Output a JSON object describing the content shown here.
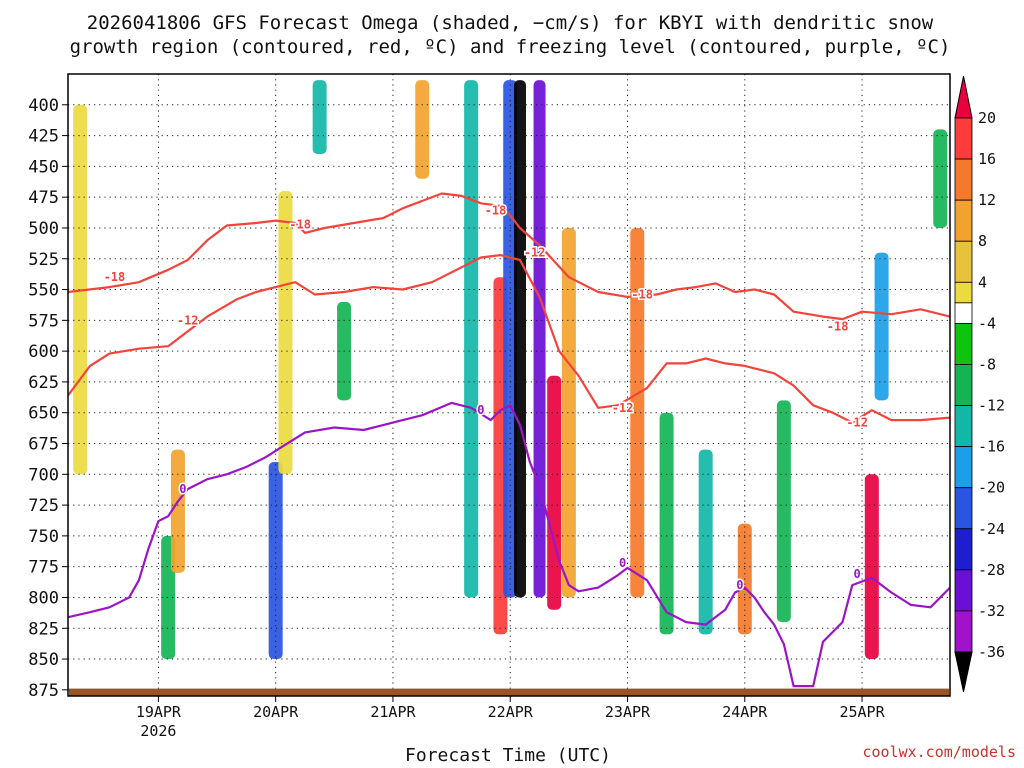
{
  "chart_data": {
    "type": "heatmap",
    "title_line1": "2026041806 GFS Forecast Omega (shaded, −cm/s) for KBYI with dendritic snow",
    "title_line2": "growth region (contoured, red, ºC) and freezing level (contoured, purple, ºC)",
    "xlabel": "Forecast Time (UTC)",
    "ylabel": "",
    "credit": "coolwx.com/models",
    "x_range_hours": [
      -18.5,
      162
    ],
    "x_ticks": [
      {
        "hour": 0,
        "label": "19APR",
        "sublabel": "2026"
      },
      {
        "hour": 24,
        "label": "20APR",
        "sublabel": ""
      },
      {
        "hour": 48,
        "label": "21APR",
        "sublabel": ""
      },
      {
        "hour": 72,
        "label": "22APR",
        "sublabel": ""
      },
      {
        "hour": 96,
        "label": "23APR",
        "sublabel": ""
      },
      {
        "hour": 120,
        "label": "24APR",
        "sublabel": ""
      },
      {
        "hour": 144,
        "label": "25APR",
        "sublabel": ""
      }
    ],
    "y_range_hpa": [
      375,
      880
    ],
    "y_ticks": [
      "400",
      "425",
      "450",
      "475",
      "500",
      "525",
      "550",
      "575",
      "600",
      "625",
      "650",
      "675",
      "700",
      "725",
      "750",
      "775",
      "800",
      "825",
      "850",
      "875"
    ],
    "colorbar": {
      "labels": [
        "20",
        "16",
        "12",
        "8",
        "4",
        "-4",
        "-8",
        "-12",
        "-16",
        "-20",
        "-24",
        "-28",
        "-32",
        "-36"
      ],
      "colors": [
        "#e8003f",
        "#ff3b3b",
        "#f5792a",
        "#f2a32f",
        "#e6c33a",
        "#eadb3f",
        "#ffffff",
        "#0fc40f",
        "#14b455",
        "#12b7a8",
        "#1b9fe8",
        "#2a55e0",
        "#1e1ecf",
        "#6a0fd6",
        "#a012cc",
        "#a6a6a6",
        "#000000"
      ]
    },
    "omega_columns": [
      {
        "hour": -16,
        "p_top": 400,
        "p_bot": 700,
        "value": 4
      },
      {
        "hour": 2,
        "p_top": 750,
        "p_bot": 850,
        "value": -8
      },
      {
        "hour": 4,
        "p_top": 680,
        "p_bot": 780,
        "value": 8
      },
      {
        "hour": 24,
        "p_top": 690,
        "p_bot": 850,
        "value": -20
      },
      {
        "hour": 26,
        "p_top": 470,
        "p_bot": 700,
        "value": 4
      },
      {
        "hour": 33,
        "p_top": 380,
        "p_bot": 440,
        "value": -12
      },
      {
        "hour": 38,
        "p_top": 560,
        "p_bot": 640,
        "value": -8
      },
      {
        "hour": 54,
        "p_top": 380,
        "p_bot": 460,
        "value": 8
      },
      {
        "hour": 64,
        "p_top": 380,
        "p_bot": 800,
        "value": -12
      },
      {
        "hour": 70,
        "p_top": 540,
        "p_bot": 830,
        "value": 16
      },
      {
        "hour": 72,
        "p_top": 380,
        "p_bot": 800,
        "value": -20
      },
      {
        "hour": 74,
        "p_top": 380,
        "p_bot": 800,
        "value": -36
      },
      {
        "hour": 78,
        "p_top": 380,
        "p_bot": 800,
        "value": -28
      },
      {
        "hour": 81,
        "p_top": 620,
        "p_bot": 810,
        "value": 20
      },
      {
        "hour": 84,
        "p_top": 500,
        "p_bot": 800,
        "value": 8
      },
      {
        "hour": 98,
        "p_top": 500,
        "p_bot": 800,
        "value": 12
      },
      {
        "hour": 104,
        "p_top": 650,
        "p_bot": 830,
        "value": -8
      },
      {
        "hour": 112,
        "p_top": 680,
        "p_bot": 830,
        "value": -12
      },
      {
        "hour": 120,
        "p_top": 740,
        "p_bot": 830,
        "value": 12
      },
      {
        "hour": 128,
        "p_top": 640,
        "p_bot": 820,
        "value": -8
      },
      {
        "hour": 146,
        "p_top": 700,
        "p_bot": 850,
        "value": 20
      },
      {
        "hour": 148,
        "p_top": 520,
        "p_bot": 640,
        "value": -16
      },
      {
        "hour": 160,
        "p_top": 420,
        "p_bot": 500,
        "value": -8
      }
    ],
    "contours": [
      {
        "name": "-18 C isotherm",
        "color": "#f2443d",
        "label": "-18",
        "label_points": [
          [
            -9,
            540
          ],
          [
            29,
            497
          ],
          [
            69,
            486
          ],
          [
            99,
            554
          ],
          [
            139,
            580
          ]
        ],
        "points": [
          [
            -18.5,
            552
          ],
          [
            -10,
            548
          ],
          [
            -4,
            544
          ],
          [
            2,
            534
          ],
          [
            6,
            526
          ],
          [
            10,
            510
          ],
          [
            14,
            498
          ],
          [
            20,
            496
          ],
          [
            24,
            494
          ],
          [
            28,
            496
          ],
          [
            30,
            504
          ],
          [
            34,
            500
          ],
          [
            40,
            496
          ],
          [
            46,
            492
          ],
          [
            50,
            484
          ],
          [
            54,
            478
          ],
          [
            58,
            472
          ],
          [
            62,
            474
          ],
          [
            66,
            480
          ],
          [
            70,
            482
          ],
          [
            72,
            490
          ],
          [
            74,
            500
          ],
          [
            78,
            514
          ],
          [
            84,
            540
          ],
          [
            90,
            552
          ],
          [
            96,
            556
          ],
          [
            102,
            554
          ],
          [
            106,
            550
          ],
          [
            110,
            548
          ],
          [
            114,
            545
          ],
          [
            118,
            552
          ],
          [
            122,
            550
          ],
          [
            126,
            554
          ],
          [
            130,
            568
          ],
          [
            136,
            572
          ],
          [
            140,
            574
          ],
          [
            144,
            568
          ],
          [
            150,
            570
          ],
          [
            156,
            566
          ],
          [
            162,
            572
          ]
        ]
      },
      {
        "name": "-12 C isotherm",
        "color": "#f2443d",
        "label": "-12",
        "label_points": [
          [
            6,
            575
          ],
          [
            77,
            520
          ],
          [
            95,
            646
          ],
          [
            143,
            658
          ]
        ],
        "points": [
          [
            -18.5,
            636
          ],
          [
            -14,
            612
          ],
          [
            -10,
            602
          ],
          [
            -4,
            598
          ],
          [
            2,
            596
          ],
          [
            6,
            584
          ],
          [
            10,
            572
          ],
          [
            16,
            558
          ],
          [
            20,
            552
          ],
          [
            24,
            548
          ],
          [
            28,
            544
          ],
          [
            32,
            554
          ],
          [
            38,
            552
          ],
          [
            44,
            548
          ],
          [
            50,
            550
          ],
          [
            56,
            544
          ],
          [
            60,
            536
          ],
          [
            66,
            524
          ],
          [
            70,
            522
          ],
          [
            74,
            526
          ],
          [
            78,
            556
          ],
          [
            82,
            600
          ],
          [
            86,
            620
          ],
          [
            90,
            646
          ],
          [
            94,
            644
          ],
          [
            100,
            630
          ],
          [
            104,
            610
          ],
          [
            108,
            610
          ],
          [
            112,
            606
          ],
          [
            116,
            610
          ],
          [
            120,
            612
          ],
          [
            126,
            618
          ],
          [
            130,
            628
          ],
          [
            134,
            644
          ],
          [
            138,
            650
          ],
          [
            142,
            658
          ],
          [
            146,
            648
          ],
          [
            150,
            656
          ],
          [
            156,
            656
          ],
          [
            162,
            654
          ]
        ]
      },
      {
        "name": "0 C freezing level",
        "color": "#9b15c7",
        "label": "0",
        "label_points": [
          [
            5,
            712
          ],
          [
            66,
            648
          ],
          [
            95,
            772
          ],
          [
            119,
            790
          ],
          [
            143,
            781
          ]
        ],
        "points": [
          [
            -18.5,
            816
          ],
          [
            -14,
            812
          ],
          [
            -10,
            808
          ],
          [
            -6,
            800
          ],
          [
            -4,
            786
          ],
          [
            -2,
            760
          ],
          [
            0,
            738
          ],
          [
            2,
            734
          ],
          [
            4,
            722
          ],
          [
            6,
            712
          ],
          [
            10,
            704
          ],
          [
            14,
            700
          ],
          [
            18,
            694
          ],
          [
            22,
            686
          ],
          [
            26,
            676
          ],
          [
            30,
            666
          ],
          [
            36,
            662
          ],
          [
            42,
            664
          ],
          [
            48,
            658
          ],
          [
            54,
            652
          ],
          [
            60,
            642
          ],
          [
            64,
            646
          ],
          [
            68,
            656
          ],
          [
            70,
            648
          ],
          [
            72,
            644
          ],
          [
            74,
            660
          ],
          [
            76,
            690
          ],
          [
            78,
            710
          ],
          [
            80,
            740
          ],
          [
            82,
            770
          ],
          [
            84,
            790
          ],
          [
            86,
            795
          ],
          [
            90,
            792
          ],
          [
            94,
            782
          ],
          [
            96,
            776
          ],
          [
            100,
            786
          ],
          [
            104,
            812
          ],
          [
            108,
            820
          ],
          [
            112,
            822
          ],
          [
            116,
            810
          ],
          [
            118,
            796
          ],
          [
            120,
            792
          ],
          [
            122,
            800
          ],
          [
            124,
            812
          ],
          [
            126,
            822
          ],
          [
            128,
            838
          ],
          [
            130,
            872
          ],
          [
            134,
            872
          ],
          [
            136,
            836
          ],
          [
            140,
            820
          ],
          [
            142,
            790
          ],
          [
            146,
            784
          ],
          [
            150,
            796
          ],
          [
            154,
            806
          ],
          [
            158,
            808
          ],
          [
            162,
            792
          ]
        ]
      }
    ],
    "terrain_color": "#9b5524"
  }
}
